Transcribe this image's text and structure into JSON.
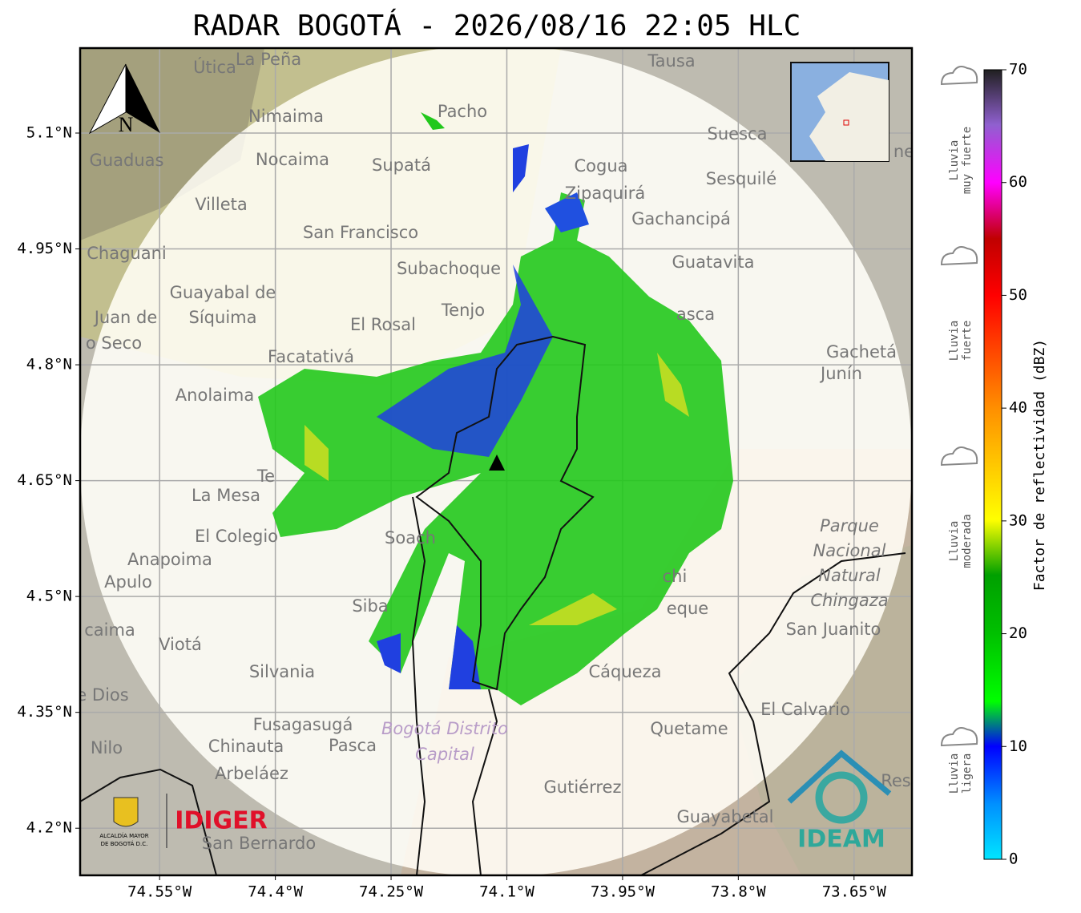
{
  "title": "RADAR BOGOTÁ - 2026/08/16 22:05 HLC",
  "map": {
    "xlim": [
      -74.653,
      -73.575
    ],
    "ylim": [
      4.139,
      5.21
    ],
    "xticks": [
      {
        "value": -74.55,
        "label": "74.55°W"
      },
      {
        "value": -74.4,
        "label": "74.4°W"
      },
      {
        "value": -74.25,
        "label": "74.25°W"
      },
      {
        "value": -74.1,
        "label": "74.1°W"
      },
      {
        "value": -73.95,
        "label": "73.95°W"
      },
      {
        "value": -73.8,
        "label": "73.8°W"
      },
      {
        "value": -73.65,
        "label": "73.65°W"
      }
    ],
    "yticks": [
      {
        "value": 5.1,
        "label": "5.1°N"
      },
      {
        "value": 4.95,
        "label": "4.95°N"
      },
      {
        "value": 4.8,
        "label": "4.8°N"
      },
      {
        "value": 4.65,
        "label": "4.65°N"
      },
      {
        "value": 4.5,
        "label": "4.5°N"
      },
      {
        "value": 4.35,
        "label": "4.35°N"
      },
      {
        "value": 4.2,
        "label": "4.2°N"
      }
    ],
    "north": "N",
    "places": [
      "Útica",
      "La Peña",
      "Tausa",
      "Pacho",
      "Nimaima",
      "Suesca",
      "Guaduas",
      "Nocaima",
      "Supatá",
      "Cogua",
      "Sesquilé",
      "Zipaquirá",
      "Villeta",
      "Gachancipá",
      "San Francisco",
      "Chaguani",
      "Guatavita",
      "Subachoque",
      "Guayabal de",
      "Síquima",
      "Juan de",
      "o Seco",
      "Tenjo",
      "asca",
      "El Rosal",
      "Facatativá",
      "Gachetá",
      "Junín",
      "Anolaima",
      "Te",
      "La Mesa",
      "El Colegio",
      "Soach",
      "Anapoima",
      "Apulo",
      "chi",
      "eque",
      "San Juanito",
      "Siba",
      "caima",
      "Viotá",
      "Silvania",
      "Cáqueza",
      "e Dios",
      "El Calvario",
      "Fusagasugá",
      "Quetame",
      "Nilo",
      "Chinauta",
      "Pasca",
      "Arbeláez",
      "Gutiérrez",
      "Guayabetal",
      "San Bernardo",
      "Res",
      "ne"
    ],
    "park": [
      "Parque",
      "Nacional",
      "Natural",
      "Chingaza"
    ],
    "district": [
      "Bogotá Distrito",
      "Capital"
    ]
  },
  "logos": {
    "alcaldia": [
      "ALCALDÍA MAYOR",
      "DE BOGOTÁ D.C."
    ],
    "idiger": "IDIGER",
    "ideam": "IDEAM"
  },
  "colorbar": {
    "label": "Factor de reflectividad (dBZ)",
    "lim": [
      0,
      70
    ],
    "ticks": [
      0,
      10,
      20,
      30,
      40,
      50,
      60,
      70
    ],
    "categories": [
      [
        "Lluvia",
        "muy fuerte"
      ],
      [
        "Lluvia",
        "fuerte"
      ],
      [
        "Lluvia",
        "moderada"
      ],
      [
        "Lluvia",
        "ligera"
      ]
    ]
  }
}
